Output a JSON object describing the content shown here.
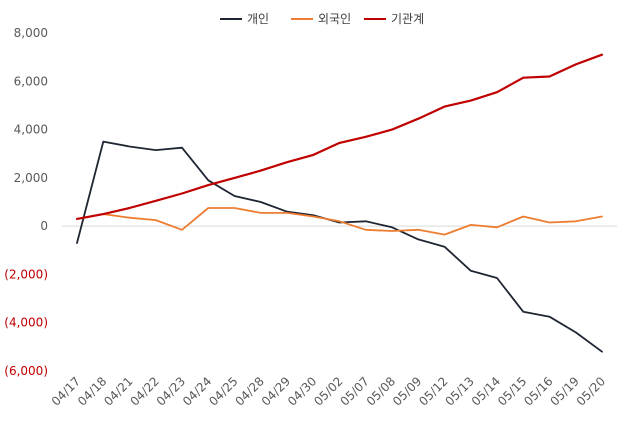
{
  "chart_data": {
    "type": "line",
    "title": "",
    "xlabel": "",
    "ylabel": "",
    "ylim": [
      -6000,
      8000
    ],
    "y_ticks": [
      8000,
      6000,
      4000,
      2000,
      0,
      -2000,
      -4000,
      -6000
    ],
    "y_tick_labels": [
      "8,000",
      "6,000",
      "4,000",
      "2,000",
      "0",
      "(2,000)",
      "(4,000)",
      "(6,000)"
    ],
    "negative_tick_color": "#c00000",
    "grid": false,
    "legend_position": "top",
    "categories": [
      "04/17",
      "04/18",
      "04/21",
      "04/22",
      "04/23",
      "04/24",
      "04/25",
      "04/28",
      "04/29",
      "04/30",
      "05/02",
      "05/07",
      "05/08",
      "05/09",
      "05/12",
      "05/13",
      "05/14",
      "05/15",
      "05/16",
      "05/19",
      "05/20"
    ],
    "series": [
      {
        "name": "개인",
        "color": "#1f2633",
        "values": [
          -700,
          3500,
          3300,
          3150,
          3250,
          1900,
          1250,
          1000,
          600,
          450,
          150,
          200,
          -50,
          -550,
          -850,
          -1850,
          -2150,
          -3550,
          -3750,
          -4400,
          -5200
        ]
      },
      {
        "name": "외국인",
        "color": "#ed7d31",
        "values": [
          300,
          500,
          350,
          250,
          -150,
          750,
          750,
          550,
          550,
          400,
          200,
          -150,
          -200,
          -150,
          -350,
          50,
          -50,
          400,
          150,
          200,
          400
        ]
      },
      {
        "name": "기관계",
        "color": "#c00000",
        "values": [
          300,
          500,
          750,
          1050,
          1350,
          1700,
          2000,
          2300,
          2650,
          2950,
          3450,
          3700,
          4000,
          4450,
          4950,
          5200,
          5550,
          6150,
          6200,
          6700,
          7100
        ]
      }
    ]
  }
}
